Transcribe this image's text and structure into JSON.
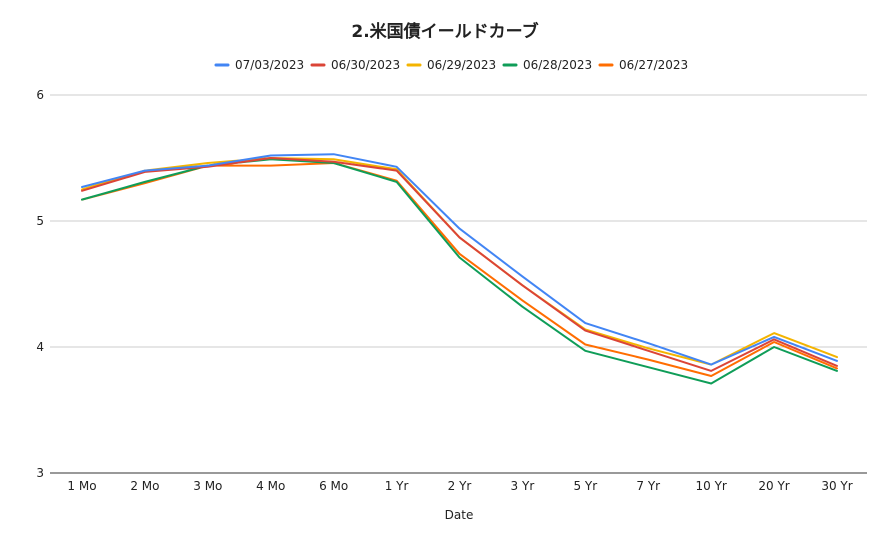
{
  "chart_data": {
    "type": "line",
    "title": "2.米国債イールドカーブ",
    "xlabel": "Date",
    "ylabel": "",
    "categories": [
      "1 Mo",
      "2 Mo",
      "3 Mo",
      "4 Mo",
      "6 Mo",
      "1 Yr",
      "2 Yr",
      "3 Yr",
      "5 Yr",
      "7 Yr",
      "10 Yr",
      "20 Yr",
      "30 Yr"
    ],
    "ylim": [
      3,
      6
    ],
    "yticks": [
      3,
      4,
      5,
      6
    ],
    "grid": true,
    "legend_position": "top",
    "series": [
      {
        "name": "07/03/2023",
        "color": "#4285F4",
        "values": [
          5.27,
          5.4,
          5.44,
          5.52,
          5.53,
          5.43,
          4.94,
          4.56,
          4.19,
          4.03,
          3.86,
          4.08,
          3.89
        ]
      },
      {
        "name": "06/30/2023",
        "color": "#DB4437",
        "values": [
          5.24,
          5.39,
          5.43,
          5.5,
          5.47,
          5.4,
          4.87,
          4.49,
          4.13,
          3.97,
          3.81,
          4.06,
          3.85
        ]
      },
      {
        "name": "06/29/2023",
        "color": "#F4B400",
        "values": [
          5.25,
          5.4,
          5.46,
          5.5,
          5.49,
          5.41,
          4.87,
          4.49,
          4.14,
          3.99,
          3.86,
          4.11,
          3.92
        ]
      },
      {
        "name": "06/28/2023",
        "color": "#0F9D58",
        "values": [
          5.17,
          5.31,
          5.44,
          5.49,
          5.46,
          5.31,
          4.71,
          4.32,
          3.97,
          3.84,
          3.71,
          4.0,
          3.81
        ]
      },
      {
        "name": "06/27/2023",
        "color": "#FF6D01",
        "values": [
          5.17,
          5.3,
          5.44,
          5.44,
          5.46,
          5.32,
          4.74,
          4.37,
          4.02,
          3.9,
          3.77,
          4.04,
          3.83
        ]
      }
    ]
  }
}
